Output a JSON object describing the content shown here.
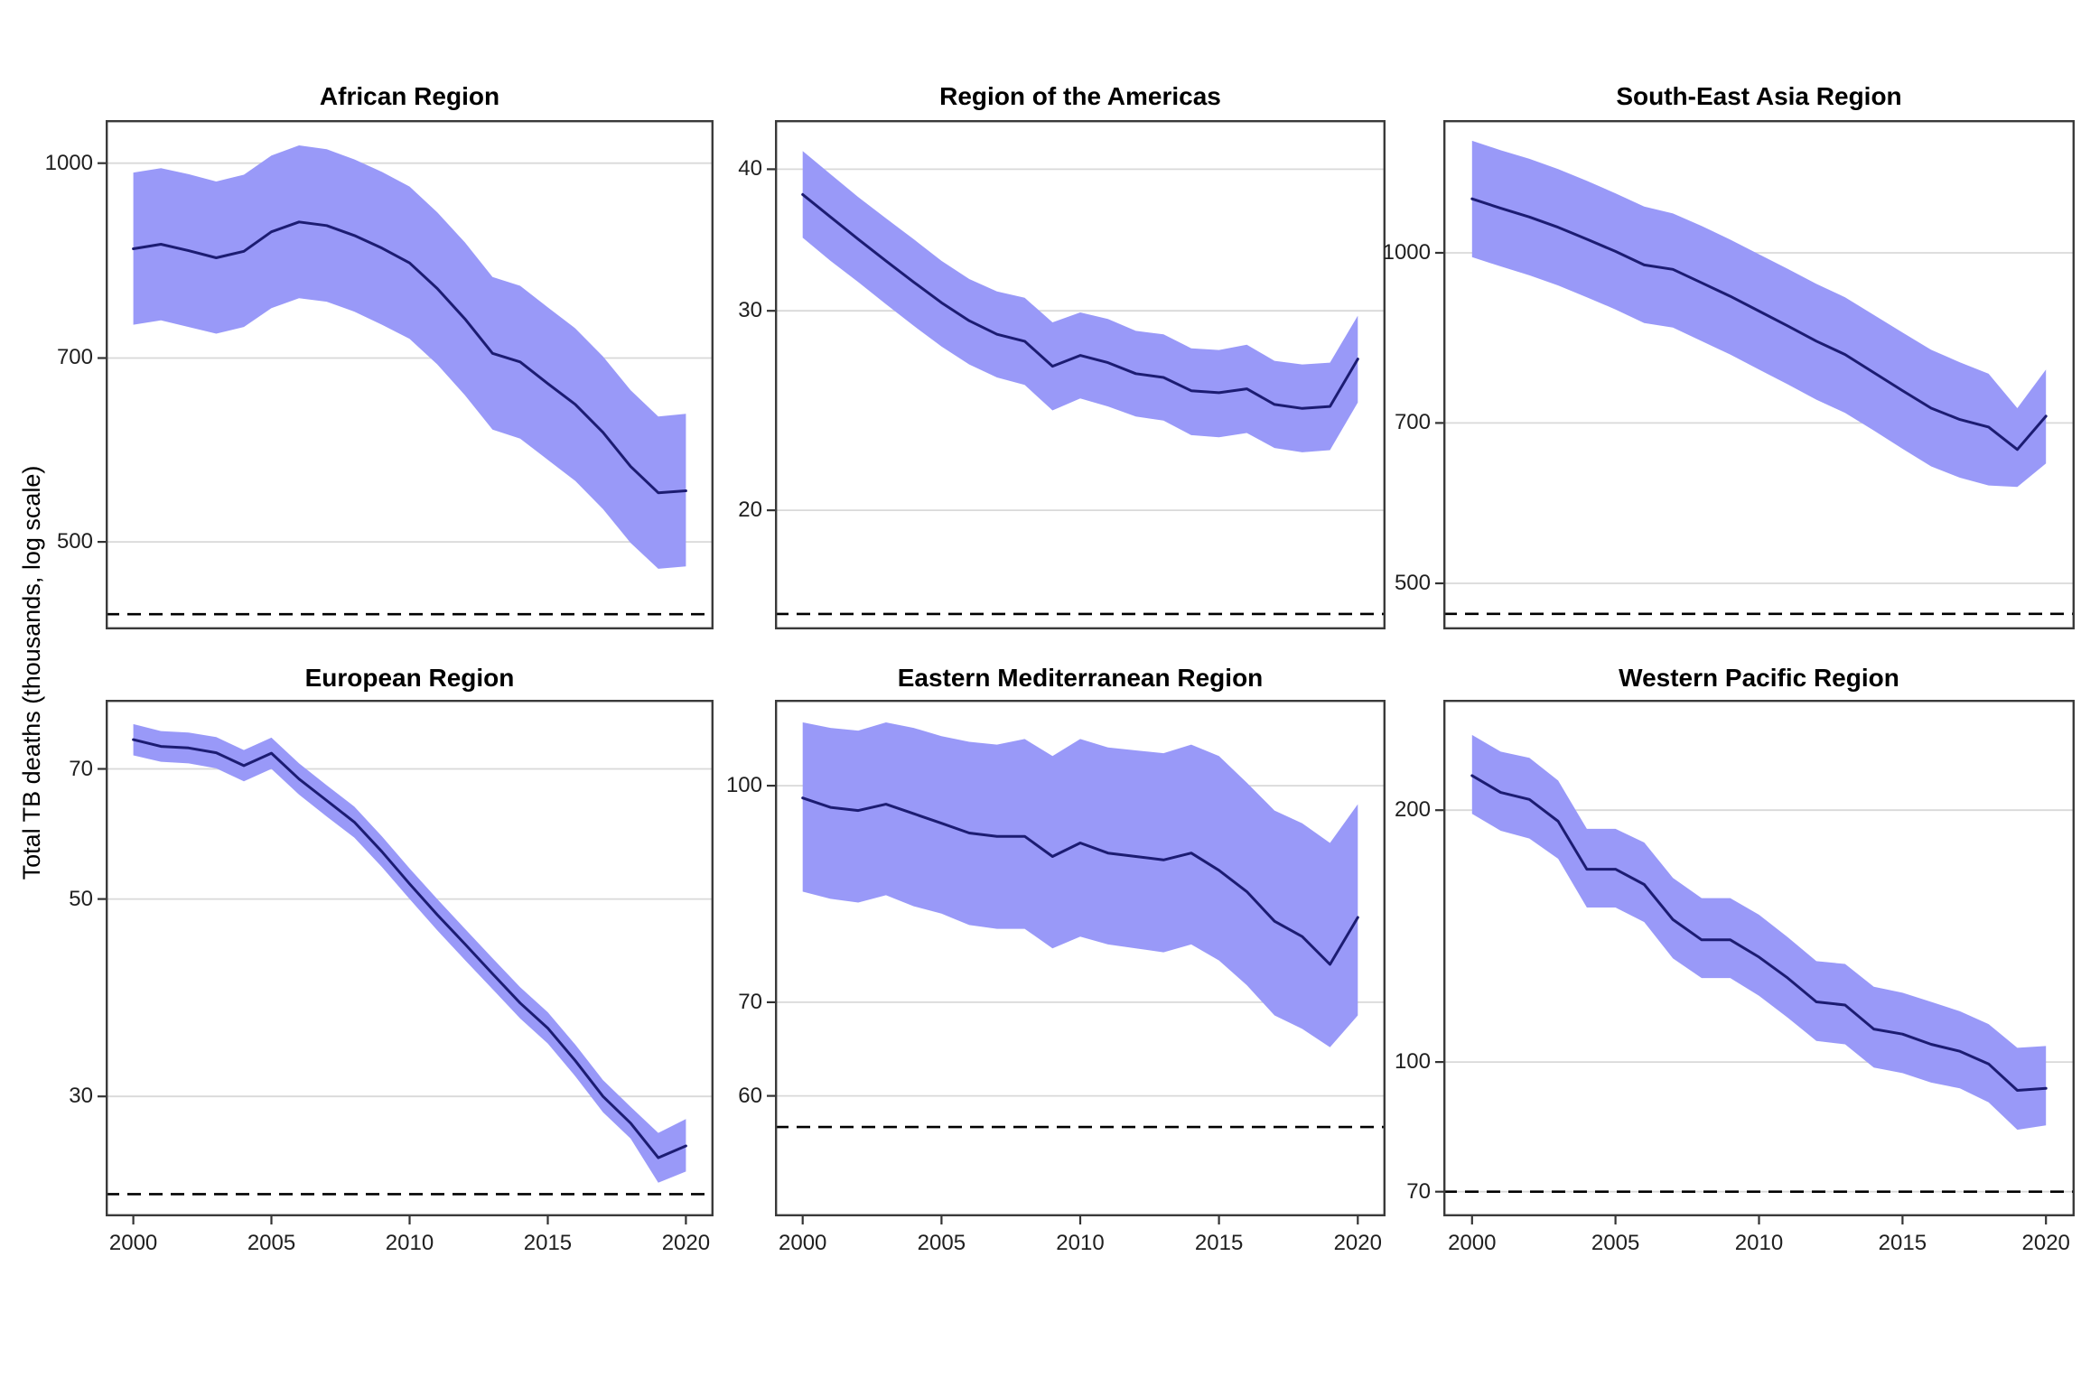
{
  "figure": {
    "ylabel": "Total TB deaths (thousands, log scale)",
    "x_tick_labels": [
      "2000",
      "2005",
      "2010",
      "2015",
      "2020"
    ],
    "x_ticks": [
      2000,
      2005,
      2010,
      2015,
      2020
    ],
    "xlim": [
      1999,
      2021
    ]
  },
  "colors": {
    "background": "#ffffff",
    "band_fill": "#9999F8",
    "trend_line": "#1C1C72",
    "gridline": "#D9D9D9",
    "dashed_target": "#000000",
    "panel_border": "#3A3A3A",
    "tick_mark": "#333333",
    "tick_text": "#1F1F1F"
  },
  "years": [
    2000,
    2001,
    2002,
    2003,
    2004,
    2005,
    2006,
    2007,
    2008,
    2009,
    2010,
    2011,
    2012,
    2013,
    2014,
    2015,
    2016,
    2017,
    2018,
    2019,
    2020
  ],
  "chart_data": [
    {
      "type": "area",
      "title": "African Region",
      "row": 0,
      "col": 0,
      "ylim": [
        426,
        1082
      ],
      "y_ticks": [
        1000,
        700,
        500
      ],
      "y_tick_labels": [
        "1000",
        "700",
        "500"
      ],
      "dashed_target": 438,
      "series": [
        {
          "name": "median",
          "values": [
            855,
            862,
            852,
            841,
            851,
            882,
            898,
            892,
            876,
            856,
            833,
            795,
            752,
            706,
            695,
            668,
            643,
            611,
            574,
            547,
            549
          ]
        },
        {
          "name": "upper",
          "values": [
            983,
            991,
            980,
            967,
            979,
            1014,
            1033,
            1026,
            1007,
            984,
            958,
            914,
            865,
            812,
            799,
            768,
            739,
            702,
            660,
            629,
            632
          ]
        },
        {
          "name": "lower",
          "values": [
            744,
            750,
            741,
            732,
            741,
            767,
            781,
            776,
            762,
            744,
            725,
            692,
            654,
            614,
            604,
            581,
            559,
            531,
            499,
            476,
            478
          ]
        }
      ]
    },
    {
      "type": "area",
      "title": "Region of the Americas",
      "row": 0,
      "col": 1,
      "ylim": [
        15.7,
        44.2
      ],
      "y_ticks": [
        40,
        30,
        20
      ],
      "y_tick_labels": [
        "40",
        "30",
        "20"
      ],
      "dashed_target": 16.2,
      "series": [
        {
          "name": "median",
          "values": [
            38.0,
            36.3,
            34.7,
            33.2,
            31.8,
            30.5,
            29.4,
            28.6,
            28.2,
            26.8,
            27.4,
            27.0,
            26.4,
            26.2,
            25.5,
            25.4,
            25.6,
            24.8,
            24.6,
            24.7,
            27.2
          ]
        },
        {
          "name": "upper",
          "values": [
            41.5,
            39.6,
            37.8,
            36.2,
            34.7,
            33.2,
            32.0,
            31.2,
            30.8,
            29.3,
            29.9,
            29.5,
            28.8,
            28.6,
            27.8,
            27.7,
            28.0,
            27.1,
            26.9,
            27.0,
            29.7
          ]
        },
        {
          "name": "lower",
          "values": [
            34.8,
            33.2,
            31.8,
            30.4,
            29.1,
            27.9,
            26.9,
            26.2,
            25.8,
            24.5,
            25.1,
            24.7,
            24.2,
            24.0,
            23.3,
            23.2,
            23.4,
            22.7,
            22.5,
            22.6,
            24.9
          ]
        }
      ]
    },
    {
      "type": "area",
      "title": "South-East Asia Region",
      "row": 0,
      "col": 2,
      "ylim": [
        454,
        1321
      ],
      "y_ticks": [
        1000,
        700,
        500
      ],
      "y_tick_labels": [
        "1000",
        "700",
        "500"
      ],
      "dashed_target": 469,
      "series": [
        {
          "name": "median",
          "values": [
            1120,
            1098,
            1078,
            1055,
            1029,
            1003,
            975,
            966,
            939,
            913,
            885,
            858,
            831,
            808,
            778,
            749,
            722,
            705,
            694,
            662,
            710
          ]
        },
        {
          "name": "upper",
          "values": [
            1265,
            1240,
            1218,
            1192,
            1163,
            1133,
            1102,
            1086,
            1058,
            1028,
            997,
            967,
            937,
            911,
            878,
            846,
            816,
            795,
            776,
            722,
            783
          ]
        },
        {
          "name": "lower",
          "values": [
            991,
            972,
            954,
            934,
            911,
            888,
            863,
            855,
            831,
            808,
            783,
            759,
            735,
            715,
            689,
            663,
            639,
            624,
            614,
            612,
            643
          ]
        }
      ]
    },
    {
      "type": "area",
      "title": "European Region",
      "row": 1,
      "col": 0,
      "ylim": [
        22.0,
        83.7
      ],
      "y_ticks": [
        70,
        50,
        30
      ],
      "y_tick_labels": [
        "70",
        "50",
        "30"
      ],
      "dashed_target": 23.3,
      "series": [
        {
          "name": "median",
          "values": [
            75.5,
            74.2,
            73.9,
            73.0,
            70.6,
            72.9,
            68.2,
            64.5,
            61.0,
            56.5,
            52.0,
            48.0,
            44.5,
            41.2,
            38.2,
            35.8,
            32.9,
            30.0,
            28.0,
            25.6,
            26.4
          ]
        },
        {
          "name": "upper",
          "values": [
            78.6,
            77.2,
            76.9,
            76.0,
            73.5,
            75.9,
            71.0,
            67.1,
            63.5,
            58.8,
            54.1,
            50.0,
            46.3,
            42.9,
            39.8,
            37.3,
            34.3,
            31.3,
            29.2,
            27.3,
            28.3
          ]
        },
        {
          "name": "lower",
          "values": [
            72.5,
            71.3,
            71.0,
            70.1,
            67.8,
            70.0,
            65.5,
            61.9,
            58.6,
            54.3,
            50.0,
            46.1,
            42.7,
            39.6,
            36.7,
            34.4,
            31.6,
            28.8,
            26.9,
            24.0,
            24.7
          ]
        }
      ]
    },
    {
      "type": "area",
      "title": "Eastern Mediterranean Region",
      "row": 1,
      "col": 1,
      "ylim": [
        49.2,
        115.2
      ],
      "y_ticks": [
        100,
        70,
        60
      ],
      "y_tick_labels": [
        "100",
        "70",
        "60"
      ],
      "dashed_target": 57,
      "series": [
        {
          "name": "median",
          "values": [
            98,
            96.5,
            96,
            97,
            95.5,
            94,
            92.5,
            92,
            92,
            89,
            91,
            89.5,
            89,
            88.5,
            89.5,
            87,
            84,
            80,
            78,
            74.5,
            80.5
          ]
        },
        {
          "name": "upper",
          "values": [
            111,
            110,
            109.5,
            111,
            110,
            108.5,
            107.5,
            107,
            108,
            105,
            108,
            106.5,
            106,
            105.5,
            107,
            105,
            100.5,
            96,
            94,
            91,
            97
          ]
        },
        {
          "name": "lower",
          "values": [
            84,
            83,
            82.5,
            83.5,
            82,
            81,
            79.5,
            79,
            79,
            76.5,
            78,
            77,
            76.5,
            76,
            77,
            75,
            72,
            68.5,
            67,
            65,
            68.5
          ]
        }
      ]
    },
    {
      "type": "area",
      "title": "Western Pacific Region",
      "row": 1,
      "col": 2,
      "ylim": [
        65.4,
        271
      ],
      "y_ticks": [
        200,
        100,
        70
      ],
      "y_tick_labels": [
        "200",
        "100",
        "70"
      ],
      "dashed_target": 70,
      "series": [
        {
          "name": "median",
          "values": [
            220,
            210,
            206,
            194,
            170,
            170,
            163,
            148,
            140,
            140,
            133.5,
            126,
            118,
            117,
            109.5,
            108,
            105,
            103,
            99.5,
            92.5,
            93
          ]
        },
        {
          "name": "upper",
          "values": [
            246,
            235,
            231,
            217,
            190,
            190,
            183,
            166,
            157,
            157,
            150,
            141,
            132,
            131,
            123,
            121,
            118,
            115,
            111,
            104,
            104.5
          ]
        },
        {
          "name": "lower",
          "values": [
            198,
            189,
            185,
            175,
            153,
            153,
            147,
            133,
            126,
            126,
            120,
            113,
            106,
            105,
            98.5,
            97,
            94.5,
            93,
            89.5,
            83,
            84
          ]
        }
      ]
    }
  ]
}
